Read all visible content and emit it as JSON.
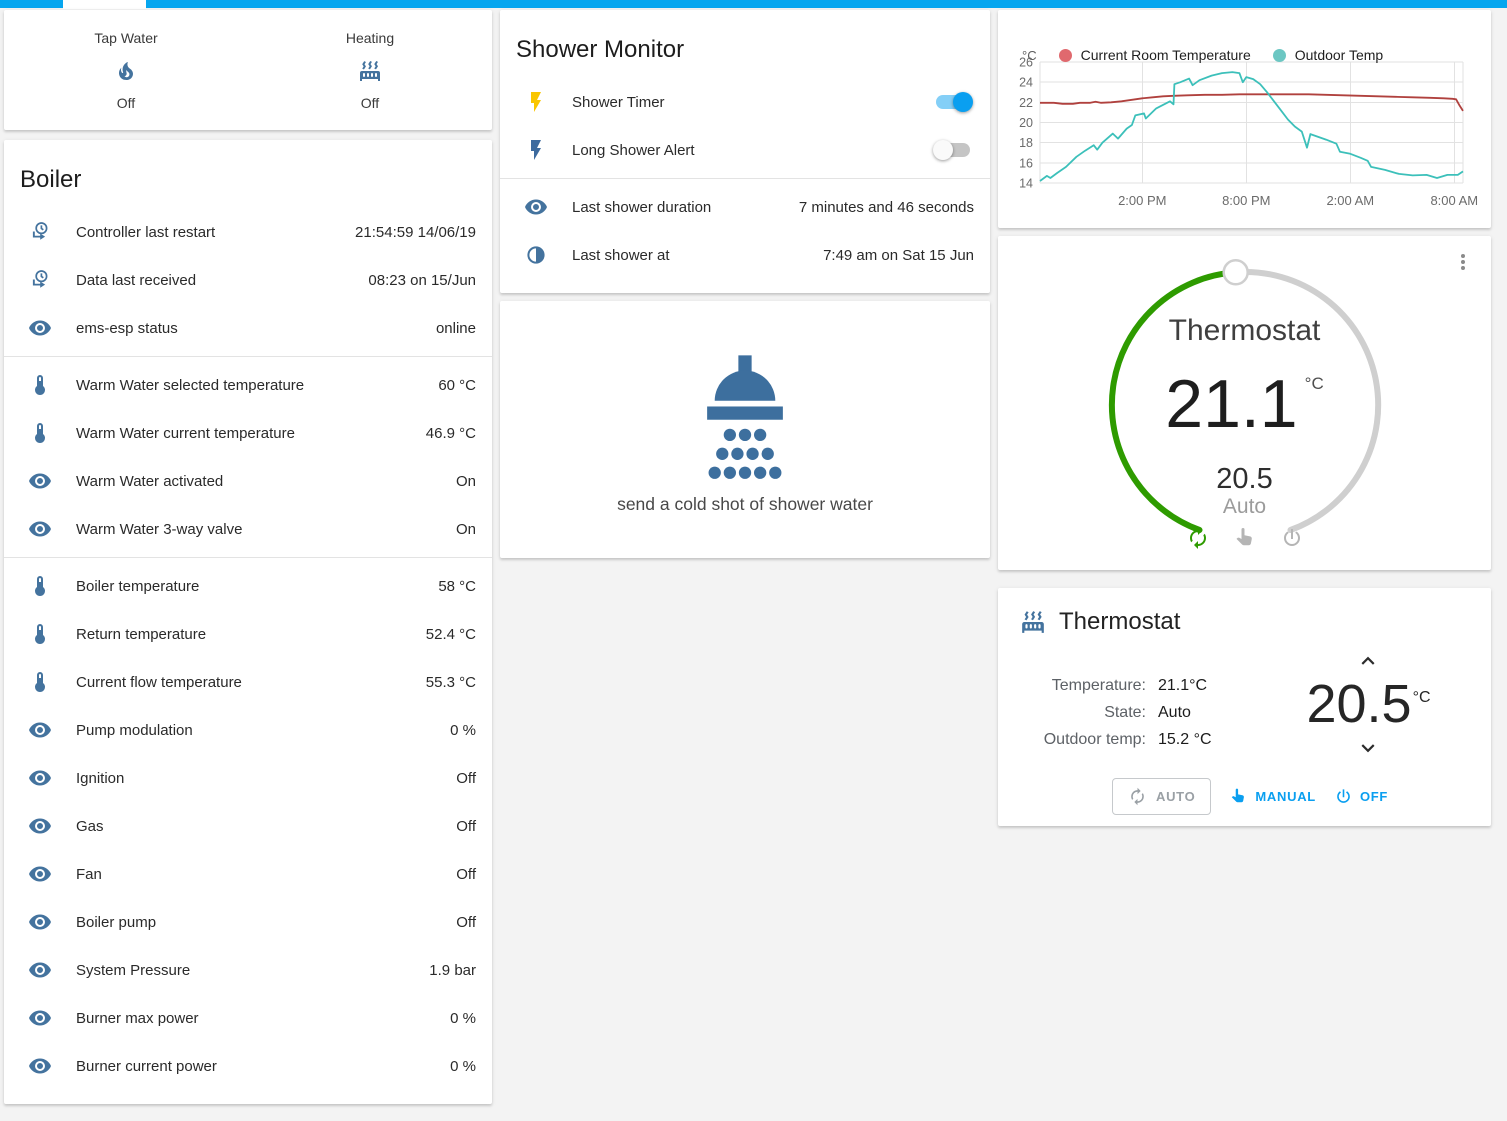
{
  "colors": {
    "app_bar": "#06a6ef",
    "icon_blue": "#44739e",
    "toggle_on": "#0a9ff0",
    "accent_blue": "#0a9ff0",
    "arc_green": "#2e9b00",
    "arc_gray": "#cfcfcf",
    "flash_yellow": "#f9c600",
    "flash_blue": "#3d6a9e"
  },
  "status_card": {
    "items": [
      {
        "label": "Tap Water",
        "icon": "fire-icon",
        "state": "Off"
      },
      {
        "label": "Heating",
        "icon": "radiator-icon",
        "state": "Off"
      }
    ]
  },
  "boiler_card": {
    "title": "Boiler",
    "groups": [
      {
        "rows": [
          {
            "icon": "history-icon",
            "label": "Controller last restart",
            "value": "21:54:59 14/06/19"
          },
          {
            "icon": "history-icon",
            "label": "Data last received",
            "value": "08:23 on 15/Jun"
          },
          {
            "icon": "eye-icon",
            "label": "ems-esp status",
            "value": "online"
          }
        ]
      },
      {
        "rows": [
          {
            "icon": "thermometer-icon",
            "label": "Warm Water selected temperature",
            "value": "60 °C"
          },
          {
            "icon": "thermometer-icon",
            "label": "Warm Water current temperature",
            "value": "46.9 °C"
          },
          {
            "icon": "eye-icon",
            "label": "Warm Water activated",
            "value": "On"
          },
          {
            "icon": "eye-icon",
            "label": "Warm Water 3-way valve",
            "value": "On"
          }
        ]
      },
      {
        "rows": [
          {
            "icon": "thermometer-icon",
            "label": "Boiler temperature",
            "value": "58 °C"
          },
          {
            "icon": "thermometer-icon",
            "label": "Return temperature",
            "value": "52.4 °C"
          },
          {
            "icon": "thermometer-icon",
            "label": "Current flow temperature",
            "value": "55.3 °C"
          },
          {
            "icon": "eye-icon",
            "label": "Pump modulation",
            "value": "0 %"
          },
          {
            "icon": "eye-icon",
            "label": "Ignition",
            "value": "Off"
          },
          {
            "icon": "eye-icon",
            "label": "Gas",
            "value": "Off"
          },
          {
            "icon": "eye-icon",
            "label": "Fan",
            "value": "Off"
          },
          {
            "icon": "eye-icon",
            "label": "Boiler pump",
            "value": "Off"
          },
          {
            "icon": "eye-icon",
            "label": "System Pressure",
            "value": "1.9 bar"
          },
          {
            "icon": "eye-icon",
            "label": "Burner max power",
            "value": "0 %"
          },
          {
            "icon": "eye-icon",
            "label": "Burner current power",
            "value": "0 %"
          }
        ]
      }
    ]
  },
  "shower_monitor": {
    "title": "Shower Monitor",
    "toggles": [
      {
        "label": "Shower Timer",
        "icon": "flash-icon",
        "icon_color": "#f9c600",
        "state": "on"
      },
      {
        "label": "Long Shower Alert",
        "icon": "flash-icon",
        "icon_color": "#3d6a9e",
        "state": "off"
      }
    ],
    "rows": [
      {
        "icon": "eye-icon",
        "label": "Last shower duration",
        "value": "7 minutes and 46 seconds"
      },
      {
        "icon": "clock-segment-icon",
        "label": "Last shower at",
        "value": "7:49 am on Sat 15 Jun"
      }
    ]
  },
  "shower_action": {
    "label": "send a cold shot of shower water"
  },
  "chart_data": {
    "type": "line",
    "unit": "°C",
    "x_unit": "time-of-day (24h span)",
    "x_range_hours": [
      0,
      24.4
    ],
    "x_ticks": [
      {
        "hour": 5.9,
        "label": "2:00 PM"
      },
      {
        "hour": 11.9,
        "label": "8:00 PM"
      },
      {
        "hour": 17.9,
        "label": "2:00 AM"
      },
      {
        "hour": 23.9,
        "label": "8:00 AM"
      }
    ],
    "y_ticks": [
      14,
      16,
      18,
      20,
      22,
      24,
      26
    ],
    "y_range": [
      14,
      26
    ],
    "grid": true,
    "legend_position": "top",
    "series": [
      {
        "name": "Current Room Temperature",
        "color": "#b0413e",
        "dot_color": "#e0696e",
        "points": [
          [
            0,
            21.95
          ],
          [
            0.8,
            21.95
          ],
          [
            1.3,
            21.85
          ],
          [
            1.9,
            21.85
          ],
          [
            2.3,
            21.95
          ],
          [
            2.9,
            21.95
          ],
          [
            3.2,
            22.05
          ],
          [
            3.5,
            21.95
          ],
          [
            4.1,
            22.0
          ],
          [
            4.7,
            22.1
          ],
          [
            5.3,
            22.25
          ],
          [
            5.9,
            22.4
          ],
          [
            6.5,
            22.5
          ],
          [
            7.1,
            22.6
          ],
          [
            7.7,
            22.65
          ],
          [
            8.5,
            22.7
          ],
          [
            9.5,
            22.75
          ],
          [
            10.5,
            22.75
          ],
          [
            11.5,
            22.8
          ],
          [
            12.5,
            22.8
          ],
          [
            13.5,
            22.8
          ],
          [
            14.5,
            22.8
          ],
          [
            15.5,
            22.8
          ],
          [
            16.5,
            22.75
          ],
          [
            17.5,
            22.7
          ],
          [
            18.5,
            22.65
          ],
          [
            19.5,
            22.6
          ],
          [
            20.5,
            22.55
          ],
          [
            21.5,
            22.5
          ],
          [
            22.5,
            22.45
          ],
          [
            23.3,
            22.4
          ],
          [
            23.8,
            22.35
          ],
          [
            24.0,
            22.3
          ],
          [
            24.2,
            21.7
          ],
          [
            24.4,
            21.15
          ]
        ]
      },
      {
        "name": "Outdoor Temp",
        "color": "#3cc0ba",
        "dot_color": "#6cc7c3",
        "points": [
          [
            0,
            14.2
          ],
          [
            0.4,
            14.7
          ],
          [
            0.6,
            14.5
          ],
          [
            1.0,
            15.0
          ],
          [
            1.5,
            15.6
          ],
          [
            2.1,
            16.6
          ],
          [
            2.6,
            17.2
          ],
          [
            3.1,
            17.75
          ],
          [
            3.3,
            17.3
          ],
          [
            3.6,
            18.0
          ],
          [
            4.2,
            18.9
          ],
          [
            4.5,
            18.4
          ],
          [
            5.0,
            19.4
          ],
          [
            5.3,
            19.75
          ],
          [
            5.5,
            20.7
          ],
          [
            6.0,
            20.9
          ],
          [
            6.1,
            20.4
          ],
          [
            6.7,
            21.4
          ],
          [
            7.5,
            22.1
          ],
          [
            7.7,
            21.8
          ],
          [
            7.75,
            23.8
          ],
          [
            8.1,
            24.0
          ],
          [
            8.6,
            24.35
          ],
          [
            8.8,
            23.7
          ],
          [
            9.2,
            24.2
          ],
          [
            9.9,
            24.65
          ],
          [
            10.5,
            24.9
          ],
          [
            11.1,
            25.0
          ],
          [
            11.5,
            24.9
          ],
          [
            11.7,
            24.0
          ],
          [
            11.9,
            24.5
          ],
          [
            12.3,
            24.3
          ],
          [
            12.7,
            23.8
          ],
          [
            13.1,
            23.0
          ],
          [
            13.5,
            22.1
          ],
          [
            13.9,
            21.2
          ],
          [
            14.3,
            20.3
          ],
          [
            14.7,
            19.6
          ],
          [
            15.1,
            19.1
          ],
          [
            15.4,
            17.5
          ],
          [
            15.6,
            18.85
          ],
          [
            16.5,
            18.3
          ],
          [
            17.1,
            17.9
          ],
          [
            17.3,
            17.1
          ],
          [
            17.9,
            16.9
          ],
          [
            18.5,
            16.5
          ],
          [
            18.9,
            16.2
          ],
          [
            19.1,
            15.6
          ],
          [
            19.9,
            15.3
          ],
          [
            20.7,
            14.9
          ],
          [
            21.5,
            14.75
          ],
          [
            22.3,
            14.8
          ],
          [
            22.9,
            14.5
          ],
          [
            23.5,
            14.8
          ],
          [
            24.1,
            14.8
          ],
          [
            24.4,
            15.15
          ]
        ]
      }
    ]
  },
  "dial_card": {
    "title": "Thermostat",
    "current_temperature": "21.1",
    "unit": "°C",
    "setpoint": "20.5",
    "mode": "Auto",
    "modes": [
      "auto",
      "manual",
      "off"
    ]
  },
  "thermostat_card": {
    "title": "Thermostat",
    "details": [
      {
        "label": "Temperature:",
        "value": "21.1°C"
      },
      {
        "label": "State:",
        "value": "Auto"
      },
      {
        "label": "Outdoor temp:",
        "value": "15.2 °C"
      }
    ],
    "setpoint": "20.5",
    "unit": "°C",
    "buttons": [
      {
        "label": "AUTO",
        "icon": "autorenew-icon",
        "style": "outlined"
      },
      {
        "label": "MANUAL",
        "icon": "hand-icon",
        "style": "flat"
      },
      {
        "label": "OFF",
        "icon": "power-icon",
        "style": "flat"
      }
    ]
  }
}
